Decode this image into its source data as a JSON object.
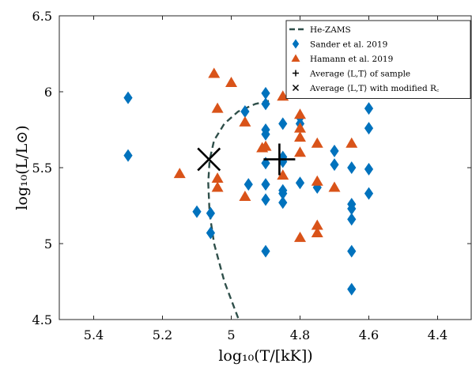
{
  "chart_data": {
    "type": "scatter",
    "xlabel": "log₁₀(T/[kK])",
    "ylabel": "log₁₀(L/L⊙)",
    "xlim": [
      5.5,
      4.3
    ],
    "ylim": [
      4.5,
      6.5
    ],
    "x_reversed": true,
    "grid": false,
    "legend_position": "top-right",
    "xticks": [
      5.4,
      5.2,
      5,
      4.8,
      4.6,
      4.4
    ],
    "xtick_labels": [
      "5.4",
      "5.2",
      "5",
      "4.8",
      "4.6",
      "4.4"
    ],
    "yticks": [
      4.5,
      5,
      5.5,
      6,
      6.5
    ],
    "ytick_labels": [
      "4.5",
      "5",
      "5.5",
      "6",
      "6.5"
    ],
    "series": [
      {
        "name": "He-ZAMS",
        "kind": "dashed-line",
        "color": "#2f4f4a",
        "points": [
          [
            4.98,
            4.51
          ],
          [
            5.02,
            4.75
          ],
          [
            5.05,
            5.0
          ],
          [
            5.063,
            5.2
          ],
          [
            5.067,
            5.4
          ],
          [
            5.063,
            5.55
          ],
          [
            5.05,
            5.68
          ],
          [
            5.02,
            5.79
          ],
          [
            4.98,
            5.87
          ],
          [
            4.93,
            5.92
          ],
          [
            4.89,
            5.94
          ]
        ]
      },
      {
        "name": "Sander et al. 2019",
        "kind": "diamond",
        "color": "#0072bd",
        "points": [
          [
            5.3,
            5.96
          ],
          [
            5.3,
            5.58
          ],
          [
            5.1,
            5.21
          ],
          [
            5.06,
            5.2
          ],
          [
            5.06,
            5.07
          ],
          [
            4.96,
            5.87
          ],
          [
            4.95,
            5.39
          ],
          [
            4.9,
            5.99
          ],
          [
            4.9,
            5.92
          ],
          [
            4.9,
            5.75
          ],
          [
            4.9,
            5.72
          ],
          [
            4.9,
            5.53
          ],
          [
            4.9,
            5.39
          ],
          [
            4.9,
            5.29
          ],
          [
            4.9,
            4.95
          ],
          [
            4.85,
            5.79
          ],
          [
            4.85,
            5.57
          ],
          [
            4.85,
            5.54
          ],
          [
            4.85,
            5.35
          ],
          [
            4.85,
            5.33
          ],
          [
            4.85,
            5.27
          ],
          [
            4.8,
            5.83
          ],
          [
            4.8,
            5.79
          ],
          [
            4.8,
            5.4
          ],
          [
            4.75,
            5.37
          ],
          [
            4.7,
            5.61
          ],
          [
            4.7,
            5.52
          ],
          [
            4.65,
            5.5
          ],
          [
            4.65,
            5.26
          ],
          [
            4.65,
            5.23
          ],
          [
            4.65,
            5.16
          ],
          [
            4.65,
            4.95
          ],
          [
            4.65,
            4.7
          ],
          [
            4.6,
            5.89
          ],
          [
            4.6,
            5.76
          ],
          [
            4.6,
            5.49
          ],
          [
            4.6,
            5.33
          ]
        ]
      },
      {
        "name": "Hamann et al. 2019",
        "kind": "triangle",
        "color": "#d95319",
        "points": [
          [
            5.15,
            5.46
          ],
          [
            5.05,
            6.12
          ],
          [
            5.04,
            5.89
          ],
          [
            5.04,
            5.43
          ],
          [
            5.04,
            5.37
          ],
          [
            5.0,
            6.06
          ],
          [
            4.96,
            5.8
          ],
          [
            4.96,
            5.31
          ],
          [
            4.91,
            5.63
          ],
          [
            4.9,
            5.64
          ],
          [
            4.85,
            5.97
          ],
          [
            4.85,
            5.45
          ],
          [
            4.8,
            5.85
          ],
          [
            4.8,
            5.76
          ],
          [
            4.8,
            5.7
          ],
          [
            4.8,
            5.6
          ],
          [
            4.8,
            5.04
          ],
          [
            4.75,
            5.66
          ],
          [
            4.75,
            5.41
          ],
          [
            4.75,
            5.12
          ],
          [
            4.75,
            5.07
          ],
          [
            4.7,
            5.37
          ],
          [
            4.65,
            5.66
          ]
        ]
      },
      {
        "name": "Average ⟨L,T⟩ of sample",
        "kind": "plus",
        "color": "#000000",
        "points": [
          [
            4.86,
            5.555
          ]
        ]
      },
      {
        "name": "Average ⟨L,T⟩ with modified R꜀",
        "kind": "cross",
        "color": "#000000",
        "points": [
          [
            5.065,
            5.555
          ]
        ]
      }
    ]
  }
}
